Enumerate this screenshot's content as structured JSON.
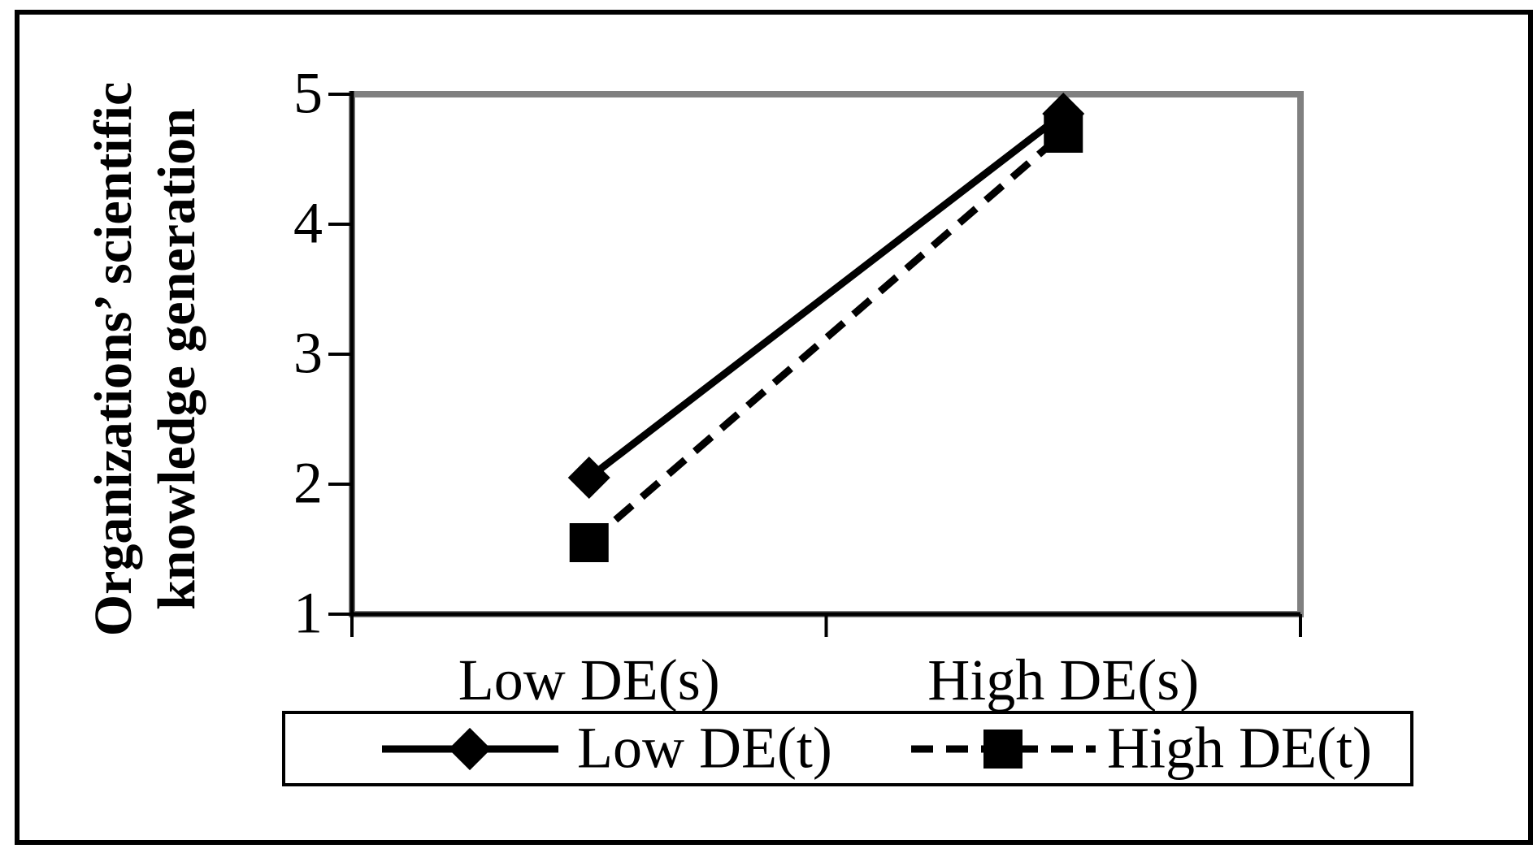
{
  "figure": {
    "background_color": "#ffffff",
    "outer_border_color": "#000000"
  },
  "chart_data": {
    "type": "line",
    "title": "",
    "categories": [
      "Low DE(s)",
      "High DE(s)"
    ],
    "series": [
      {
        "name": "Low DE(t)",
        "line_style": "solid",
        "marker": "diamond",
        "color": "#000000",
        "values": [
          2.05,
          4.85
        ]
      },
      {
        "name": "High DE(t)",
        "line_style": "dashed",
        "marker": "square",
        "color": "#000000",
        "values": [
          1.55,
          4.7
        ]
      }
    ],
    "xlabel": "",
    "ylabel_line1": "Organizations’ scientific",
    "ylabel_line2": "knowledge generation",
    "ylim": [
      1,
      5
    ],
    "yticks": [
      5,
      4,
      3,
      2,
      1
    ],
    "grid": "off",
    "legend_position": "bottom-boxed",
    "plot_border_color": "#808080",
    "axis_color": "#000000"
  }
}
